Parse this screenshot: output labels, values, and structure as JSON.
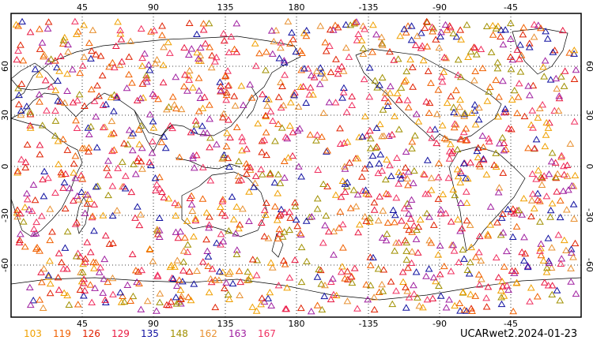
{
  "map": {
    "lon_ticks_top": [
      "45",
      "90",
      "135",
      "180",
      "-135",
      "-90",
      "-45"
    ],
    "lon_ticks_bottom": [
      "45",
      "90",
      "135",
      "180",
      "-135",
      "-90",
      "-45"
    ],
    "lat_ticks_left": [
      "60",
      "30",
      "0",
      "-30",
      "-60"
    ],
    "lat_ticks_right": [
      "60",
      "30",
      "0",
      "-30",
      "-60"
    ],
    "grid": "dotted",
    "marker": "triangle-outline"
  },
  "legend": {
    "items": [
      {
        "label": "103",
        "color": "#f0a000"
      },
      {
        "label": "119",
        "color": "#f06000"
      },
      {
        "label": "126",
        "color": "#e02000"
      },
      {
        "label": "129",
        "color": "#e81840"
      },
      {
        "label": "135",
        "color": "#1010a0"
      },
      {
        "label": "148",
        "color": "#a09000"
      },
      {
        "label": "162",
        "color": "#e89030"
      },
      {
        "label": "163",
        "color": "#a020a0"
      },
      {
        "label": "167",
        "color": "#f03060"
      }
    ]
  },
  "stamp": "UCARwet2.2024-01-23"
}
